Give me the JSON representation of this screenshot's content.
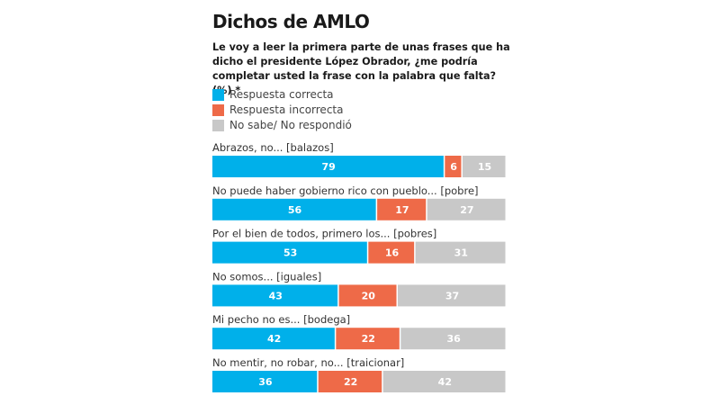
{
  "chart_data": {
    "type": "bar",
    "stacked": true,
    "orientation": "horizontal",
    "title": "Dichos de AMLO",
    "subtitle": "Le voy a leer la primera parte de unas frases que ha dicho el presidente López Obrador, ¿me podría completar usted la frase con la palabra que falta? (%) *",
    "legend_position": "top-left",
    "grid": false,
    "xlim": [
      0,
      100
    ],
    "categories": [
      "Abrazos, no... [balazos]",
      "No puede haber gobierno rico con pueblo... [pobre]",
      "Por el bien de todos, primero los... [pobres]",
      "No somos... [iguales]",
      "Mi pecho no es... [bodega]",
      "No mentir, no robar, no... [traicionar]"
    ],
    "series": [
      {
        "name": "Respuesta correcta",
        "color": "#00b0ea",
        "values": [
          79,
          56,
          53,
          43,
          42,
          36
        ]
      },
      {
        "name": "Respuesta incorrecta",
        "color": "#ee6a48",
        "values": [
          6,
          17,
          16,
          20,
          22,
          22
        ]
      },
      {
        "name": "No sabe/ No respondió",
        "color": "#c8c8c8",
        "values": [
          15,
          27,
          31,
          37,
          36,
          42
        ]
      }
    ]
  }
}
